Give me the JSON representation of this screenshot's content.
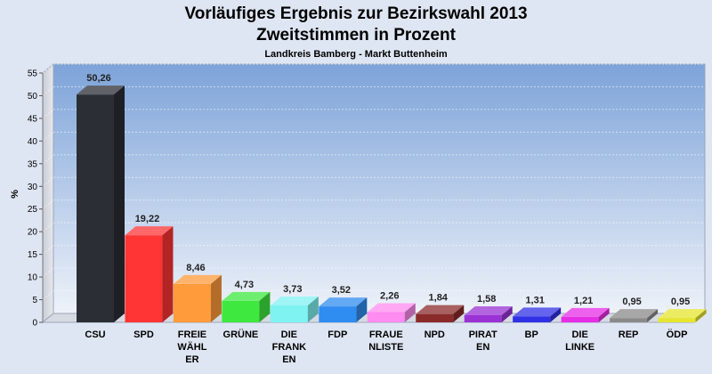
{
  "chart_data": {
    "type": "bar",
    "title_line1": "Vorläufiges Ergebnis zur Bezirkswahl 2013",
    "title_line2": "Zweitstimmen in Prozent",
    "subtitle": "Landkreis Bamberg - Markt Buttenheim",
    "ylabel": "%",
    "xlabel": "",
    "ylim": [
      0,
      55
    ],
    "yticks": [
      "0",
      "5",
      "10",
      "15",
      "20",
      "25",
      "30",
      "35",
      "40",
      "45",
      "50",
      "55"
    ],
    "grid": true,
    "legend": "none",
    "categories": [
      [
        "CSU"
      ],
      [
        "SPD"
      ],
      [
        "FREIE",
        "WÄHL",
        "ER"
      ],
      [
        "GRÜNE"
      ],
      [
        "DIE",
        "FRANK",
        "EN"
      ],
      [
        "FDP"
      ],
      [
        "FRAUE",
        "NLISTE"
      ],
      [
        "NPD"
      ],
      [
        "PIRAT",
        "EN"
      ],
      [
        "BP"
      ],
      [
        "DIE",
        "LINKE"
      ],
      [
        "REP"
      ],
      [
        "ÖDP"
      ]
    ],
    "values": [
      50.26,
      19.22,
      8.46,
      4.73,
      3.73,
      3.52,
      2.26,
      1.84,
      1.58,
      1.31,
      1.21,
      0.95,
      0.95
    ],
    "value_labels": [
      "50,26",
      "19,22",
      "8,46",
      "4,73",
      "3,73",
      "3,52",
      "2,26",
      "1,84",
      "1,58",
      "1,31",
      "1,21",
      "0,95",
      "0,95"
    ],
    "colors": [
      "#2b2e35",
      "#ff3535",
      "#ff9b3a",
      "#3ee83e",
      "#7ff2f2",
      "#2f8cf0",
      "#ff8cf0",
      "#8a2a2a",
      "#9a32d6",
      "#3030e6",
      "#e62ee6",
      "#8a8a8a",
      "#e6e62e"
    ]
  }
}
